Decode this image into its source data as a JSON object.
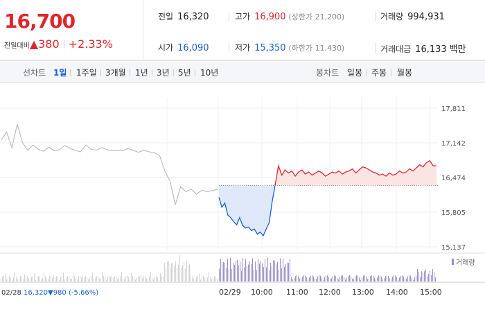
{
  "quote": {
    "price": "16,700",
    "diff_label": "전일대비",
    "diff_arrow": "▲",
    "diff_value": "380",
    "diff_pct": "+2.33%"
  },
  "stats": {
    "prev_label": "전일",
    "prev_value": "16,320",
    "high_label": "고가",
    "high_value": "16,900",
    "upper_limit": "(상한가 21,200)",
    "volume_label": "거래량",
    "volume_value": "994,931",
    "open_label": "시가",
    "open_value": "16,090",
    "low_label": "저가",
    "low_value": "15,350",
    "lower_limit": "(하한가 11,430)",
    "amount_label": "거래대금",
    "amount_value": "16,133",
    "amount_unit": "백만"
  },
  "tabs": {
    "line_label": "선차트",
    "line_periods": [
      "1일",
      "1주일",
      "3개월",
      "1년",
      "3년",
      "5년",
      "10년"
    ],
    "candle_label": "봉차트",
    "candle_periods": [
      "일봉",
      "주봉",
      "월봉"
    ]
  },
  "chart_data": {
    "type": "line",
    "y_ticks": [
      "17,811",
      "17,142",
      "16,474",
      "15,805",
      "15,137"
    ],
    "x_labels": [
      "02/28",
      "02/29",
      "10:00",
      "11:00",
      "12:00",
      "13:00",
      "14:00",
      "15:00"
    ],
    "prev_close_label": "02/28",
    "prev_close_value": "16,320",
    "prev_close_change": "▼980",
    "prev_close_pct": "(-5.66%)",
    "volume_legend": "거래량",
    "ylim": [
      15137,
      17811
    ],
    "reference_price": 16320,
    "colors": {
      "up": "#e0262d",
      "down": "#1c5fd8",
      "prev": "#bdbdbd",
      "volume": "#9b8fc4"
    },
    "prev_day_series": [
      17200,
      17350,
      17050,
      17500,
      17150,
      17000,
      17100,
      17020,
      16980,
      17060,
      16990,
      17010,
      17090,
      17040,
      17000,
      16970,
      17100,
      17020,
      17000,
      17050,
      17010,
      16990,
      17000,
      16990,
      17030,
      17000,
      16960,
      17000,
      16970,
      16950,
      16900,
      16600,
      16400,
      15950,
      16300,
      16200,
      16250,
      16150,
      16230,
      16200,
      16220,
      16250
    ],
    "today_down_series": [
      16090,
      15900,
      15980,
      15750,
      15700,
      15620,
      15560,
      15700,
      15550,
      15500,
      15520,
      15450,
      15480,
      15380,
      15420,
      15350,
      15480,
      15600,
      16000,
      16320
    ],
    "today_up_series": [
      16320,
      16700,
      16520,
      16620,
      16560,
      16600,
      16500,
      16580,
      16620,
      16540,
      16580,
      16520,
      16560,
      16600,
      16560,
      16500,
      16540,
      16580,
      16560,
      16600,
      16540,
      16580,
      16600,
      16640,
      16560,
      16620,
      16680,
      16660,
      16620,
      16580,
      16560,
      16520,
      16540,
      16500,
      16560,
      16520,
      16540,
      16600,
      16560,
      16580,
      16640,
      16600,
      16660,
      16720,
      16680,
      16760,
      16800,
      16700,
      16700
    ]
  }
}
